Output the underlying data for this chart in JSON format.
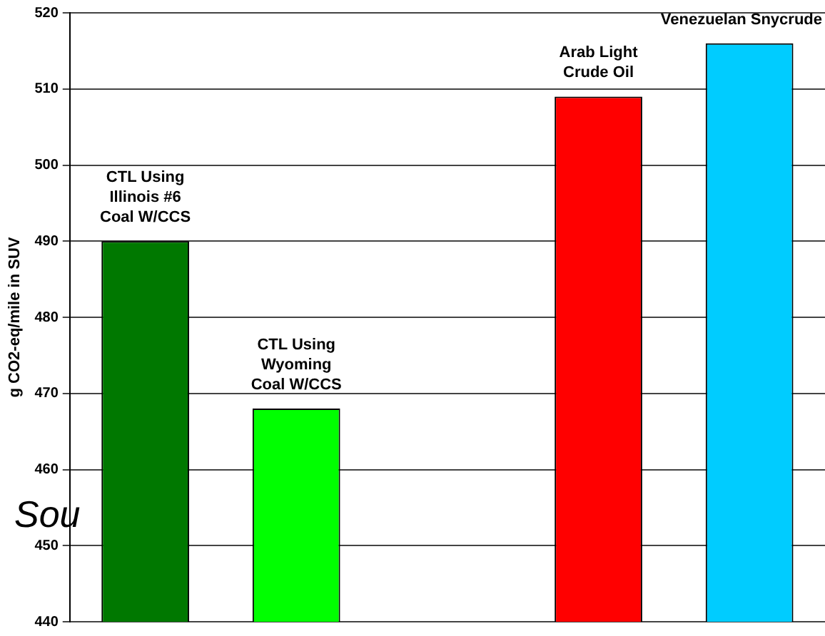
{
  "chart_data": {
    "type": "bar",
    "ylabel": "g CO2-eq/mile in SUV",
    "categories": [
      "CTL Using Illinois #6 Coal W/CCS",
      "CTL Using Wyoming Coal W/CCS",
      null,
      "Arab Light Crude Oil",
      "Venezuelan Snycrude"
    ],
    "values": [
      490,
      468,
      null,
      509,
      516
    ],
    "colors": [
      "#007800",
      "#00ff00",
      "#808080",
      "#ff0000",
      "#00ccff"
    ],
    "ylim": [
      440,
      520
    ],
    "yticks": [
      440,
      450,
      460,
      470,
      480,
      490,
      500,
      510,
      520
    ],
    "grid": "y",
    "tick_labels": "y",
    "legend": false,
    "annotations": [
      "Sou"
    ]
  }
}
